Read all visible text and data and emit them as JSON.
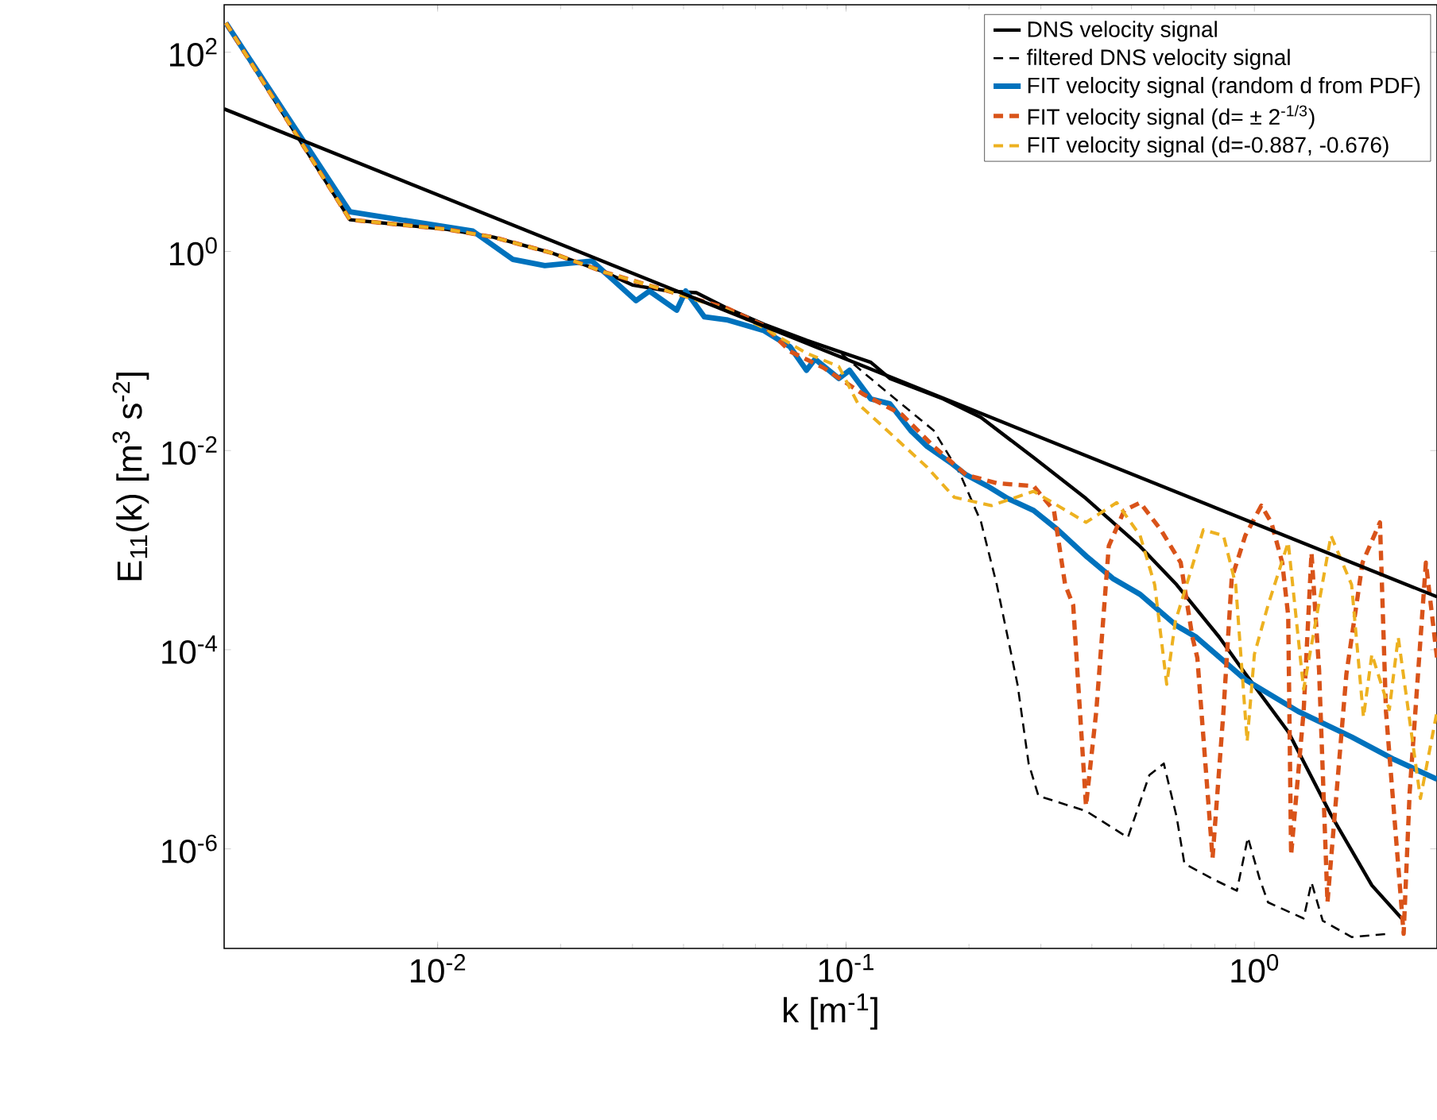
{
  "chart_data": {
    "type": "line",
    "xlabel": "k [m$^{-1}$]",
    "ylabel": "E$_{11}$(k) [m$^{3}$ s$^{-2}$]",
    "log": "xy",
    "legend": "top right",
    "marker": "none",
    "xlim": [
      0.003,
      2.8
    ],
    "ylim": [
      1e-07,
      300
    ],
    "xticks": [
      {
        "value": 0.01,
        "label": "10$^{-2}$"
      },
      {
        "value": 0.1,
        "label": "10$^{-1}$"
      },
      {
        "value": 1,
        "label": "10$^{0}$"
      }
    ],
    "yticks": [
      {
        "value": 1e-06,
        "label": "10$^{-6}$"
      },
      {
        "value": 0.0001,
        "label": "10$^{-4}$"
      },
      {
        "value": 0.01,
        "label": "10$^{-2}$"
      },
      {
        "value": 1,
        "label": "10$^{0}$"
      },
      {
        "value": 100,
        "label": "10$^{2}$"
      }
    ],
    "series": [
      {
        "name": "DNS velocity signal",
        "color": "#000000",
        "line_style": "solid",
        "x": [
          0.00303,
          0.0061,
          0.0105,
          0.0137,
          0.0191,
          0.0256,
          0.03,
          0.0367,
          0.043,
          0.051,
          0.063,
          0.08,
          0.096,
          0.115,
          0.128,
          0.173,
          0.214,
          0.288,
          0.387,
          0.525,
          0.645,
          0.82,
          0.95,
          1.21,
          1.54,
          1.94,
          2.32
        ],
        "values": [
          197,
          2.08,
          1.67,
          1.39,
          0.96,
          0.62,
          0.46,
          0.4,
          0.385,
          0.27,
          0.185,
          0.128,
          0.099,
          0.077,
          0.053,
          0.033,
          0.0215,
          0.0085,
          0.0033,
          0.00109,
          0.00045,
          0.000134,
          5.75e-05,
          1.5e-05,
          2.2e-06,
          4.3e-07,
          1.9e-07
        ]
      },
      {
        "name": "filtered DNS velocity signal",
        "color": "#000000",
        "line_style": "dashed",
        "x": [
          0.00303,
          0.0061,
          0.0105,
          0.0137,
          0.0191,
          0.0256,
          0.03,
          0.0367,
          0.043,
          0.051,
          0.063,
          0.08,
          0.096,
          0.11,
          0.132,
          0.164,
          0.19,
          0.214,
          0.234,
          0.263,
          0.28,
          0.296,
          0.387,
          0.49,
          0.553,
          0.6,
          0.645,
          0.674,
          0.79,
          0.906,
          0.964,
          1.03,
          1.08,
          1.32,
          1.38,
          1.47,
          1.73,
          1.94,
          2.12
        ],
        "values": [
          197,
          2.08,
          1.67,
          1.39,
          0.96,
          0.62,
          0.46,
          0.4,
          0.385,
          0.27,
          0.185,
          0.128,
          0.099,
          0.0615,
          0.033,
          0.0159,
          0.0059,
          0.00193,
          0.00045,
          4.48e-05,
          7.2e-06,
          3.4e-06,
          2.4e-06,
          1.3e-06,
          5.5e-06,
          7.2e-06,
          2.1e-06,
          7.1e-07,
          5e-07,
          3.8e-07,
          1.3e-06,
          5e-07,
          2.9e-07,
          2e-07,
          4.6e-07,
          1.9e-07,
          1.3e-07,
          null,
          1.4e-07
        ]
      },
      {
        "name": "FIT velocity signal (random d from PDF)",
        "color": "#0072bd",
        "line_style": "solid",
        "x": [
          0.00303,
          0.0061,
          0.0122,
          0.0153,
          0.0183,
          0.0239,
          0.0306,
          0.033,
          0.0385,
          0.0405,
          0.045,
          0.051,
          0.063,
          0.073,
          0.08,
          0.084,
          0.096,
          0.102,
          0.115,
          0.128,
          0.144,
          0.158,
          0.18,
          0.197,
          0.222,
          0.249,
          0.288,
          0.33,
          0.39,
          0.45,
          0.525,
          0.645,
          0.72,
          0.95,
          1.28,
          1.73,
          2.2,
          2.8
        ],
        "values": [
          197,
          2.5,
          1.6,
          0.83,
          0.72,
          0.8,
          0.32,
          0.4,
          0.257,
          0.4,
          0.22,
          0.206,
          0.16,
          0.11,
          0.064,
          0.083,
          0.053,
          0.064,
          0.033,
          0.0295,
          0.0159,
          0.011,
          0.0076,
          0.0057,
          0.0044,
          0.0033,
          0.0025,
          0.0016,
          0.00085,
          0.00052,
          0.00036,
          0.000174,
          0.000134,
          5e-05,
          2.4e-05,
          1.33e-05,
          7.9e-06,
          5e-06
        ]
      },
      {
        "name": "FIT velocity signal (d= ± 2$^{-1/3}$)",
        "color": "#d95319",
        "line_style": "dashed",
        "x": [
          0.00303,
          0.0061,
          0.0105,
          0.0137,
          0.0191,
          0.0256,
          0.0367,
          0.051,
          0.063,
          0.073,
          0.088,
          0.11,
          0.137,
          0.164,
          0.197,
          0.234,
          0.288,
          0.323,
          0.344,
          0.36,
          0.387,
          0.41,
          0.44,
          0.48,
          0.525,
          0.59,
          0.66,
          0.705,
          0.725,
          0.79,
          0.84,
          0.88,
          0.95,
          1.04,
          1.1,
          1.17,
          1.21,
          1.23,
          1.32,
          1.38,
          1.44,
          1.51,
          1.68,
          1.84,
          2.03,
          2.1,
          2.32,
          2.4,
          2.63,
          2.8
        ],
        "values": [
          197,
          2.08,
          1.67,
          1.39,
          0.96,
          0.62,
          0.4,
          0.27,
          0.18,
          0.099,
          0.068,
          0.037,
          0.023,
          0.011,
          0.0057,
          0.0047,
          0.0044,
          0.0025,
          0.00045,
          0.00028,
          2.7e-06,
          2.4e-05,
          0.0011,
          0.0025,
          0.003,
          0.0016,
          0.00075,
          0.000134,
          8.3e-05,
          8.1e-07,
          2.4e-05,
          0.00052,
          0.0014,
          0.0028,
          0.0019,
          0.00075,
          0.00022,
          8.7e-07,
          2.4e-05,
          0.00094,
          6.3e-05,
          2.9e-07,
          5.7e-05,
          0.00075,
          0.0019,
          2.4e-05,
          1.4e-07,
          3.7e-06,
          0.00075,
          8.3e-05
        ]
      },
      {
        "name": "FIT velocity signal (d=-0.887, -0.676)",
        "color": "#edb120",
        "line_style": "dashed",
        "x": [
          0.00303,
          0.0061,
          0.0105,
          0.0137,
          0.0191,
          0.0256,
          0.0367,
          0.051,
          0.063,
          0.08,
          0.096,
          0.107,
          0.13,
          0.158,
          0.184,
          0.227,
          0.288,
          0.387,
          0.46,
          0.525,
          0.57,
          0.61,
          0.64,
          0.75,
          0.84,
          0.9,
          0.96,
          1.0,
          1.08,
          1.21,
          1.32,
          1.54,
          1.73,
          1.85,
          1.94,
          2.14,
          2.25,
          2.55,
          2.8
        ],
        "values": [
          197,
          2.08,
          1.67,
          1.39,
          0.96,
          0.62,
          0.4,
          0.26,
          0.17,
          0.095,
          0.07,
          0.0295,
          0.0142,
          0.0068,
          0.0034,
          0.0028,
          0.0039,
          0.0019,
          0.003,
          0.0014,
          0.00045,
          4.5e-05,
          0.00019,
          0.0016,
          0.0014,
          0.00045,
          1.2e-05,
          9e-05,
          0.00028,
          0.0012,
          4e-05,
          0.0014,
          0.00045,
          2.1e-05,
          9e-05,
          2.5e-05,
          0.000134,
          3.2e-06,
          2.4e-05
        ]
      },
      {
        "color": "#000000",
        "line_style": "solid",
        "x": [
          0.003,
          2.8
        ],
        "values": [
          27,
          0.00034
        ]
      }
    ]
  }
}
